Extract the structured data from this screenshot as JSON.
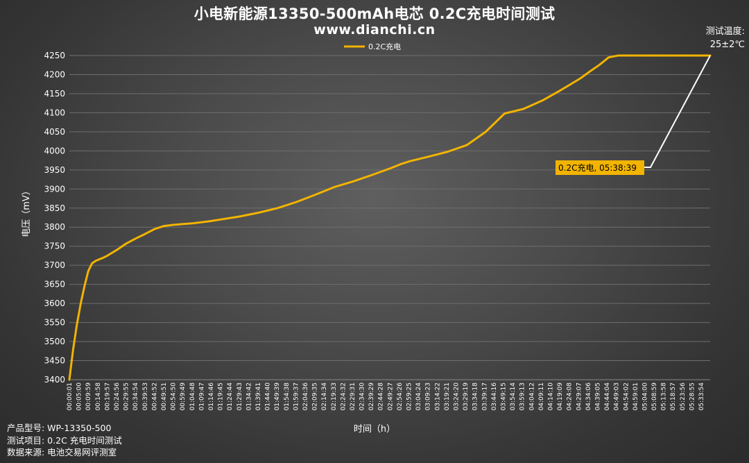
{
  "title": "小电新能源13350-500mAh电芯 0.2C充电时间测试",
  "subtitle": "www.dianchi.cn",
  "test_temp": {
    "label": "测试温度:",
    "value": "25±2℃"
  },
  "footer": {
    "model": "产品型号:  WP-13350-500",
    "item": "测试项目:  0.2C 充电时间测试",
    "source": "数据来源:  电池交易网评测室"
  },
  "colors": {
    "series": "#f2b400",
    "callout_bg": "#f2b400",
    "leader": "#ffffff",
    "grid": "#6e6e6e"
  },
  "chart_data": {
    "type": "line",
    "xlabel": "时间（h）",
    "ylabel": "电压（mV）",
    "ylim": [
      3400,
      4250
    ],
    "yticks": [
      3400,
      3450,
      3500,
      3550,
      3600,
      3650,
      3700,
      3750,
      3800,
      3850,
      3900,
      3950,
      4000,
      4050,
      4100,
      4150,
      4200,
      4250
    ],
    "grid": "horizontal",
    "legend": "top-center",
    "xtick_labels": [
      "00:00:01",
      "00:05:00",
      "00:09:59",
      "00:14:58",
      "00:19:57",
      "00:24:56",
      "00:29:55",
      "00:34:54",
      "00:39:53",
      "00:44:52",
      "00:49:51",
      "00:54:50",
      "00:59:49",
      "01:04:48",
      "01:09:47",
      "01:14:46",
      "01:19:45",
      "01:24:44",
      "01:29:43",
      "01:34:42",
      "01:39:41",
      "01:44:40",
      "01:49:39",
      "01:54:38",
      "01:59:37",
      "02:04:36",
      "02:09:35",
      "02:14:34",
      "02:19:33",
      "02:24:32",
      "02:29:31",
      "02:34:30",
      "02:39:29",
      "02:44:28",
      "02:49:27",
      "02:54:26",
      "02:59:25",
      "03:04:24",
      "03:09:23",
      "03:14:22",
      "03:19:21",
      "03:24:20",
      "03:29:19",
      "03:34:18",
      "03:39:17",
      "03:44:16",
      "03:49:15",
      "03:54:14",
      "03:59:13",
      "04:04:12",
      "04:09:11",
      "04:14:10",
      "04:19:09",
      "04:24:08",
      "04:29:07",
      "04:34:06",
      "04:39:05",
      "04:44:04",
      "04:49:03",
      "04:54:02",
      "04:59:01",
      "05:04:00",
      "05:08:59",
      "05:13:58",
      "05:18:57",
      "05:23:56",
      "05:28:55",
      "05:33:54"
    ],
    "series": [
      {
        "name": "0.2C充电",
        "x_minutes": [
          0,
          2,
          4,
          6,
          8,
          10,
          12,
          14,
          16,
          18,
          20,
          25,
          30,
          35,
          40,
          45,
          50,
          55,
          60,
          65,
          70,
          75,
          80,
          90,
          100,
          110,
          120,
          130,
          140,
          150,
          160,
          170,
          175,
          180,
          190,
          200,
          210,
          220,
          230,
          240,
          250,
          260,
          270,
          275,
          280,
          285,
          290,
          295,
          300,
          305,
          310,
          315,
          320,
          323,
          325,
          330,
          335,
          338.65
        ],
        "y": [
          3400,
          3480,
          3545,
          3600,
          3645,
          3685,
          3705,
          3712,
          3716,
          3720,
          3725,
          3740,
          3757,
          3770,
          3782,
          3795,
          3803,
          3806,
          3808,
          3810,
          3813,
          3816,
          3820,
          3828,
          3838,
          3850,
          3866,
          3885,
          3905,
          3920,
          3937,
          3955,
          3965,
          3973,
          3985,
          3998,
          4015,
          4050,
          4098,
          4110,
          4132,
          4160,
          4190,
          4208,
          4225,
          4245,
          4250,
          4250,
          4250,
          4250,
          4250,
          4250,
          4250,
          4250,
          4250,
          4250,
          4250,
          4250
        ]
      }
    ],
    "annotation": {
      "text": "0.2C充电, 05:38:39",
      "x_minutes": 338.65,
      "y": 4250
    }
  }
}
